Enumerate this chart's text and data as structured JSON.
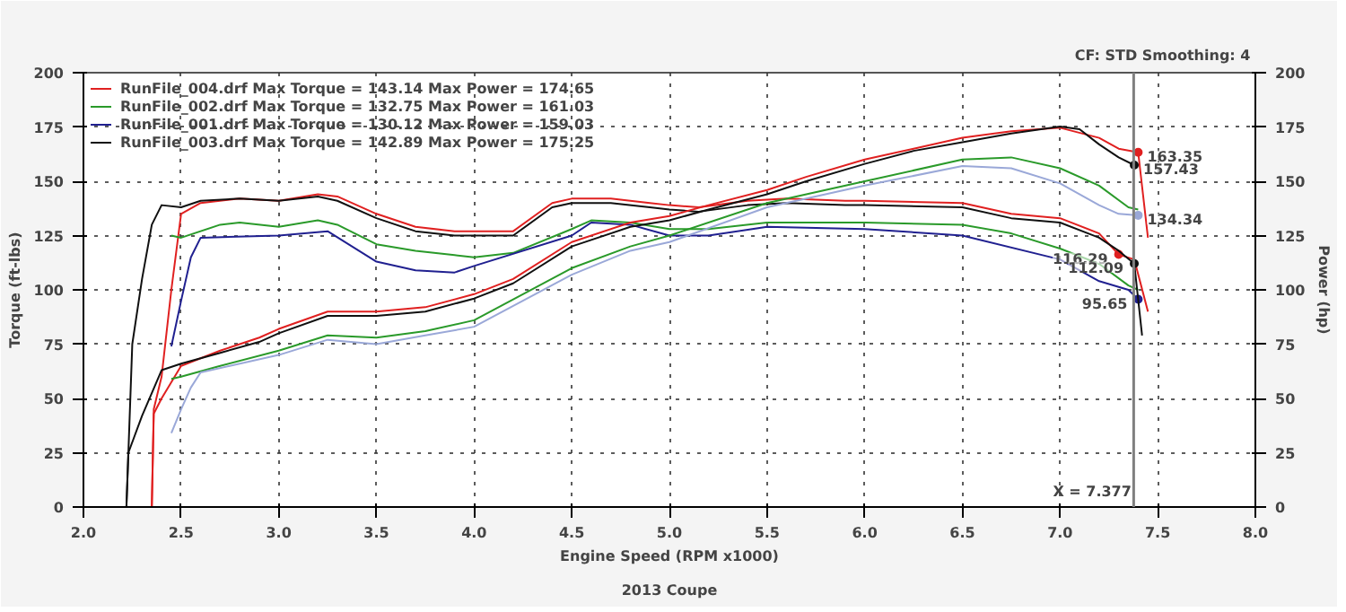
{
  "chart_data": {
    "type": "line",
    "xlabel": "Engine Speed (RPM x1000)",
    "ylabel": "Torque (ft-lbs)",
    "y2label": "Power (hp)",
    "annotations": [
      "CF: STD  Smoothing: 4",
      "2013 Coupe"
    ],
    "xlim": [
      2.0,
      8.0
    ],
    "xticks": [
      {
        "value": 2.0,
        "label": "2.0"
      },
      {
        "value": 2.5,
        "label": "2.5"
      },
      {
        "value": 3.0,
        "label": "3.0"
      },
      {
        "value": 3.5,
        "label": "3.5"
      },
      {
        "value": 4.0,
        "label": "4.0"
      },
      {
        "value": 4.5,
        "label": "4.5"
      },
      {
        "value": 5.0,
        "label": "5.0"
      },
      {
        "value": 5.5,
        "label": "5.5"
      },
      {
        "value": 6.0,
        "label": "6.0"
      },
      {
        "value": 6.5,
        "label": "6.5"
      },
      {
        "value": 7.0,
        "label": "7.0"
      },
      {
        "value": 7.5,
        "label": "7.5"
      },
      {
        "value": 8.0,
        "label": "8.0"
      }
    ],
    "ylim": [
      0,
      200
    ],
    "yticks": [
      0,
      25,
      50,
      75,
      100,
      125,
      150,
      175,
      200
    ],
    "y2lim": [
      0,
      200
    ],
    "y2ticks": [
      0,
      25,
      50,
      75,
      100,
      125,
      150,
      175,
      200
    ],
    "grid": true,
    "legend": "top left",
    "marker": "none",
    "line_style": "solid",
    "ref_lines": [
      {
        "axis": "x",
        "value": 7.377,
        "label": "X = 7.377",
        "color": "#808080"
      }
    ],
    "series": [
      {
        "name": "RunFile_004.drf Max Torque = 143.14 Max Power = 174.65",
        "color": "#e02020",
        "x": [
          2.35,
          2.36,
          2.4,
          2.45,
          2.5,
          2.6,
          2.8,
          3.0,
          3.2,
          3.3,
          3.5,
          3.7,
          3.9,
          4.0,
          4.2,
          4.4,
          4.5,
          4.7,
          4.9,
          5.0,
          5.15,
          5.4,
          5.6,
          5.9,
          6.0,
          6.5,
          6.75,
          7.0,
          7.2,
          7.3,
          7.38,
          7.45
        ],
        "values": [
          0,
          45,
          60,
          100,
          135,
          140,
          142,
          141,
          144,
          143,
          135,
          129,
          127,
          127,
          127,
          140,
          142,
          142,
          140,
          139,
          138,
          141,
          142,
          141,
          141,
          140,
          135,
          133,
          126,
          116.29,
          114,
          90
        ],
        "value_labels": [
          null,
          null,
          null,
          null,
          null,
          null,
          null,
          null,
          null,
          null,
          null,
          null,
          null,
          null,
          null,
          null,
          null,
          null,
          null,
          null,
          null,
          null,
          null,
          null,
          null,
          null,
          null,
          null,
          null,
          "116.29",
          null,
          null
        ]
      },
      {
        "name": "RunFile_002.drf Max Torque = 132.75 Max Power = 161.03",
        "color": "#2a9a2a",
        "x": [
          2.45,
          2.5,
          2.7,
          2.8,
          3.0,
          3.2,
          3.3,
          3.5,
          3.7,
          3.9,
          4.0,
          4.2,
          4.5,
          4.6,
          4.8,
          5.0,
          5.2,
          5.5,
          6.0,
          6.5,
          6.75,
          7.0,
          7.2,
          7.35,
          7.4
        ],
        "values": [
          125,
          124,
          130,
          131,
          129,
          132,
          130,
          121,
          118,
          116,
          115,
          117,
          128,
          132,
          131,
          128,
          128,
          131,
          131,
          130,
          126,
          119,
          112,
          102,
          100
        ]
      },
      {
        "name": "RunFile_001.drf Max Torque = 130.12 Max Power = 159.03",
        "color": "#202090",
        "x": [
          2.45,
          2.5,
          2.55,
          2.6,
          3.0,
          3.25,
          3.5,
          3.7,
          3.9,
          4.0,
          4.5,
          4.6,
          4.8,
          5.0,
          5.2,
          5.5,
          6.0,
          6.5,
          7.0,
          7.2,
          7.35,
          7.4
        ],
        "values": [
          74,
          95,
          115,
          124,
          125,
          127,
          113,
          109,
          108,
          111,
          125,
          131,
          130,
          125,
          125,
          129,
          128,
          125,
          114,
          104,
          100,
          95.65
        ],
        "value_labels": [
          null,
          null,
          null,
          null,
          null,
          null,
          null,
          null,
          null,
          null,
          null,
          null,
          null,
          null,
          null,
          null,
          null,
          null,
          null,
          null,
          null,
          "95.65"
        ]
      },
      {
        "name": "RunFile_003.drf Max Torque = 142.89 Max Power = 175.25",
        "color": "#101010",
        "x": [
          2.22,
          2.23,
          2.25,
          2.3,
          2.35,
          2.4,
          2.5,
          2.6,
          2.8,
          3.0,
          3.2,
          3.3,
          3.5,
          3.7,
          3.9,
          4.0,
          4.2,
          4.4,
          4.5,
          4.7,
          4.9,
          5.0,
          5.15,
          5.4,
          5.6,
          5.9,
          6.0,
          6.5,
          6.75,
          7.0,
          7.2,
          7.3,
          7.38,
          7.42
        ],
        "values": [
          0,
          25,
          75,
          105,
          130,
          139,
          138,
          141,
          142,
          141,
          143,
          141,
          133,
          127,
          125,
          125,
          125,
          138,
          140,
          140,
          138,
          137,
          136,
          139,
          140,
          139,
          139,
          138,
          133,
          131,
          124,
          118,
          112.09,
          79
        ],
        "value_labels": [
          null,
          null,
          null,
          null,
          null,
          null,
          null,
          null,
          null,
          null,
          null,
          null,
          null,
          null,
          null,
          null,
          null,
          null,
          null,
          null,
          null,
          null,
          null,
          null,
          null,
          null,
          null,
          null,
          null,
          null,
          null,
          null,
          "112.09",
          null
        ]
      },
      {
        "color": "#e02020",
        "axis": "y2",
        "x": [
          2.35,
          2.36,
          2.4,
          2.5,
          2.7,
          2.9,
          3.0,
          3.25,
          3.5,
          3.75,
          4.0,
          4.2,
          4.5,
          4.8,
          5.0,
          5.2,
          5.5,
          5.7,
          6.0,
          6.25,
          6.5,
          6.75,
          7.0,
          7.2,
          7.3,
          7.4,
          7.45
        ],
        "values": [
          0,
          43,
          50,
          65,
          72,
          78,
          82,
          90,
          90,
          92,
          98,
          105,
          122,
          131,
          134,
          139,
          146,
          152,
          160,
          165,
          170,
          173,
          174.65,
          170,
          165,
          163.35,
          124
        ],
        "value_labels": [
          null,
          null,
          null,
          null,
          null,
          null,
          null,
          null,
          null,
          null,
          null,
          null,
          null,
          null,
          null,
          null,
          null,
          null,
          null,
          null,
          null,
          null,
          null,
          null,
          null,
          "163.35",
          null
        ]
      },
      {
        "color": "#2a9a2a",
        "axis": "y2",
        "x": [
          2.45,
          2.5,
          2.7,
          3.0,
          3.25,
          3.5,
          3.75,
          4.0,
          4.5,
          4.8,
          5.0,
          5.5,
          6.0,
          6.5,
          6.75,
          7.0,
          7.2,
          7.35,
          7.4
        ],
        "values": [
          59,
          60,
          65,
          72,
          79,
          78,
          81,
          86,
          110,
          120,
          125,
          140,
          150,
          160,
          161,
          156,
          148,
          138,
          137
        ]
      },
      {
        "color": "#9aa8d8",
        "axis": "y2",
        "x": [
          2.45,
          2.5,
          2.55,
          2.6,
          3.0,
          3.25,
          3.5,
          3.75,
          4.0,
          4.5,
          4.8,
          5.0,
          5.5,
          6.0,
          6.5,
          6.75,
          7.0,
          7.2,
          7.3,
          7.4
        ],
        "values": [
          34,
          45,
          55,
          62,
          70,
          77,
          75,
          79,
          83,
          107,
          118,
          122,
          138,
          148,
          157,
          156,
          149,
          139,
          135,
          134.34
        ],
        "value_labels": [
          null,
          null,
          null,
          null,
          null,
          null,
          null,
          null,
          null,
          null,
          null,
          null,
          null,
          null,
          null,
          null,
          null,
          null,
          null,
          "134.34"
        ]
      },
      {
        "color": "#101010",
        "axis": "y2",
        "x": [
          2.22,
          2.23,
          2.3,
          2.4,
          2.5,
          2.7,
          2.9,
          3.0,
          3.25,
          3.5,
          3.75,
          4.0,
          4.2,
          4.5,
          4.8,
          5.0,
          5.2,
          5.5,
          5.7,
          6.0,
          6.25,
          6.5,
          6.75,
          7.0,
          7.1,
          7.2,
          7.3,
          7.38
        ],
        "values": [
          0,
          25,
          42,
          63,
          66,
          71,
          76,
          80,
          88,
          88,
          90,
          96,
          103,
          120,
          129,
          132,
          137,
          144,
          150,
          158,
          164,
          168,
          172,
          175.25,
          174,
          167,
          161,
          157.43
        ],
        "value_labels": [
          null,
          null,
          null,
          null,
          null,
          null,
          null,
          null,
          null,
          null,
          null,
          null,
          null,
          null,
          null,
          null,
          null,
          null,
          null,
          null,
          null,
          null,
          null,
          null,
          null,
          null,
          null,
          "157.43"
        ]
      }
    ]
  }
}
